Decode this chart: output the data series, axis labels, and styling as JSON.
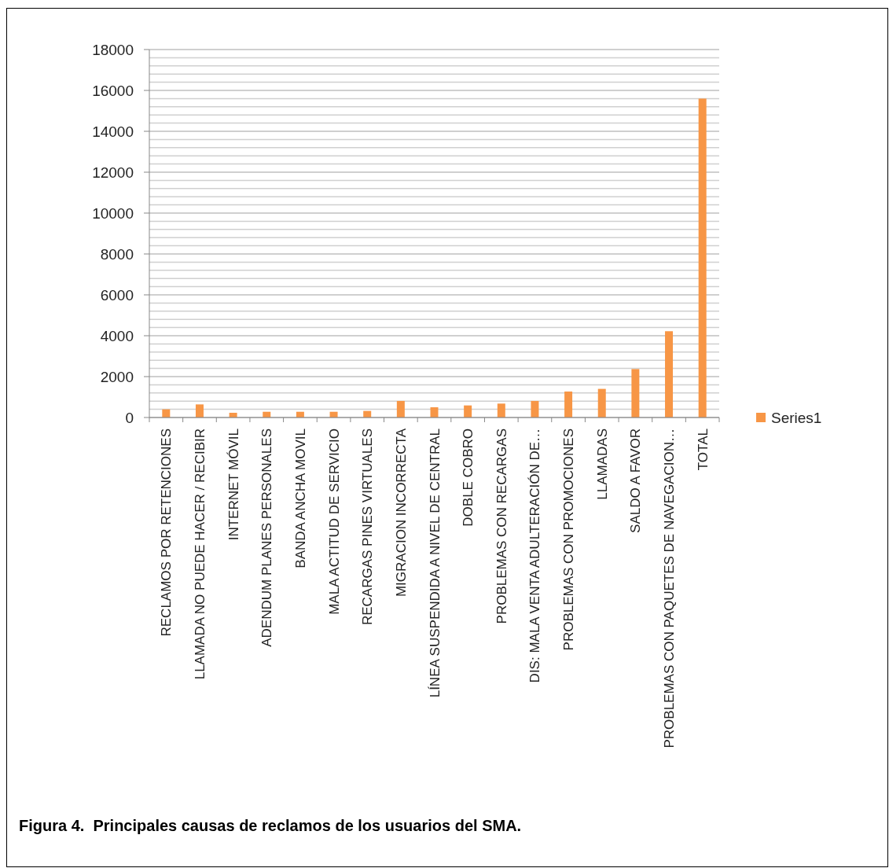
{
  "chart_data": {
    "type": "bar",
    "title": "Figura 4.  Principales causas de reclamos de los usuarios del SMA.",
    "categories": [
      "RECLAMOS POR RETENCIONES",
      "LLAMADA NO PUEDE HACER / RECIBIR",
      "INTERNET MÓVIL",
      "ADENDUM PLANES PERSONALES",
      "BANDA ANCHA MOVIL",
      "MALA ACTITUD DE SERVICIO",
      "RECARGAS PINES VIRTUALES",
      "MIGRACION INCORRECTA",
      "LÍNEA SUSPENDIDA A NIVEL DE CENTRAL",
      "DOBLE COBRO",
      "PROBLEMAS CON RECARGAS",
      "DIS: MALA VENTA ADULTERACIÓN DE…",
      "PROBLEMAS CON PROMOCIONES",
      "LLAMADAS",
      "SALDO A FAVOR",
      "PROBLEMAS CON PAQUETES DE NAVEGACION…",
      "TOTAL"
    ],
    "series": [
      {
        "name": "Series1",
        "color": "#f79646",
        "values": [
          400,
          640,
          230,
          280,
          280,
          280,
          320,
          810,
          500,
          590,
          680,
          810,
          1270,
          1400,
          2370,
          4220,
          15600
        ]
      }
    ],
    "ylim": [
      0,
      18000
    ],
    "yticks": [
      0,
      {
        "value": 400,
        "label": null
      },
      {
        "value": 800,
        "label": null
      },
      {
        "value": 1200,
        "label": null
      },
      {
        "value": 1600,
        "label": null
      },
      2000,
      {
        "value": 2400,
        "label": null
      },
      {
        "value": 2800,
        "label": null
      },
      {
        "value": 3200,
        "label": null
      },
      {
        "value": 3600,
        "label": null
      },
      4000,
      {
        "value": 4400,
        "label": null
      },
      {
        "value": 4800,
        "label": null
      },
      {
        "value": 5200,
        "label": null
      },
      {
        "value": 5600,
        "label": null
      },
      6000,
      {
        "value": 6400,
        "label": null
      },
      {
        "value": 6800,
        "label": null
      },
      {
        "value": 7200,
        "label": null
      },
      {
        "value": 7600,
        "label": null
      },
      8000,
      {
        "value": 8400,
        "label": null
      },
      {
        "value": 8800,
        "label": null
      },
      {
        "value": 9200,
        "label": null
      },
      {
        "value": 9600,
        "label": null
      },
      10000,
      {
        "value": 10400,
        "label": null
      },
      {
        "value": 10800,
        "label": null
      },
      {
        "value": 11200,
        "label": null
      },
      {
        "value": 11600,
        "label": null
      },
      12000,
      {
        "value": 12400,
        "label": null
      },
      {
        "value": 12800,
        "label": null
      },
      {
        "value": 13200,
        "label": null
      },
      {
        "value": 13600,
        "label": null
      },
      14000,
      {
        "value": 14400,
        "label": null
      },
      {
        "value": 14800,
        "label": null
      },
      {
        "value": 15200,
        "label": null
      },
      {
        "value": 15600,
        "label": null
      },
      16000,
      {
        "value": 16400,
        "label": null
      },
      {
        "value": 16800,
        "label": null
      },
      {
        "value": 17200,
        "label": null
      },
      {
        "value": 17600,
        "label": null
      },
      18000
    ],
    "grid": "y",
    "legend": "right"
  }
}
